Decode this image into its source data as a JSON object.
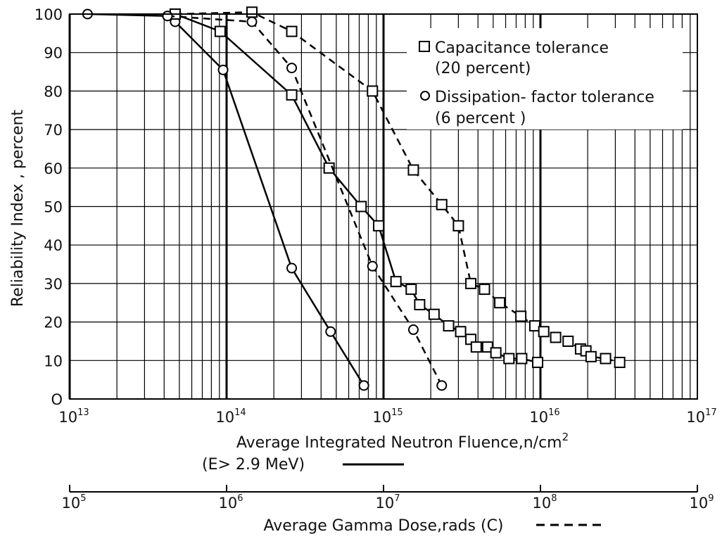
{
  "chart_data": {
    "type": "line",
    "ylabel": "Reliability Index , percent",
    "xlabel": "Average Integrated Neutron Fluence,n/cm²",
    "xlabel_note": "(E> 2.9 MeV)",
    "x_scale": "log",
    "xlim": [
      10000000000000.0,
      1e+17
    ],
    "ylim": [
      0,
      100
    ],
    "y_ticks": [
      "O",
      "10",
      "20",
      "30",
      "40",
      "50",
      "60",
      "70",
      "80",
      "90",
      "100"
    ],
    "x_ticks": [
      {
        "base": "10",
        "exp": "13"
      },
      {
        "base": "10",
        "exp": "14"
      },
      {
        "base": "10",
        "exp": "15"
      },
      {
        "base": "10",
        "exp": "16"
      },
      {
        "base": "10",
        "exp": "17"
      }
    ],
    "secondary_axis": {
      "label": "Average Gamma Dose,rads (C)",
      "scale": "log",
      "range": [
        100000.0,
        1000000000.0
      ],
      "ticks": [
        {
          "base": "10",
          "exp": "5"
        },
        {
          "base": "10",
          "exp": "6"
        },
        {
          "base": "10",
          "exp": "7"
        },
        {
          "base": "10",
          "exp": "8"
        },
        {
          "base": "10",
          "exp": "9"
        }
      ]
    },
    "grid": true,
    "legend_position": "top-right",
    "legend": [
      {
        "marker": "square",
        "line1": "Capacitance tolerance",
        "line2": "(20 percent)"
      },
      {
        "marker": "circle",
        "line1": "Dissipation- factor tolerance",
        "line2": "(6 percent )"
      }
    ],
    "series": [
      {
        "marker": "square",
        "style": "solid",
        "points": [
          [
            47000000000000.0,
            100
          ],
          [
            91000000000000.0,
            95.5
          ],
          [
            260000000000000.0,
            79
          ],
          [
            450000000000000.0,
            60
          ],
          [
            720000000000000.0,
            50
          ],
          [
            930000000000000.0,
            45
          ],
          [
            1200000000000000.0,
            30.5
          ],
          [
            1500000000000000.0,
            28.5
          ],
          [
            1700000000000000.0,
            24.5
          ],
          [
            2100000000000000.0,
            22
          ],
          [
            2600000000000000.0,
            19
          ],
          [
            3100000000000000.0,
            17.5
          ],
          [
            3600000000000000.0,
            15.5
          ],
          [
            3900000000000000.0,
            13.5
          ],
          [
            4600000000000000.0,
            13.5
          ],
          [
            5200000000000000.0,
            12
          ],
          [
            6300000000000000.0,
            10.5
          ],
          [
            7600000000000000.0,
            10.5
          ],
          [
            9600000000000000.0,
            9.5
          ]
        ]
      },
      {
        "marker": "circle",
        "style": "solid",
        "points": [
          [
            13000000000000.0,
            100
          ],
          [
            42000000000000.0,
            99.5
          ],
          [
            47000000000000.0,
            98
          ],
          [
            95000000000000.0,
            85.5
          ],
          [
            260000000000000.0,
            34
          ],
          [
            460000000000000.0,
            17.5
          ],
          [
            750000000000000.0,
            3.5
          ]
        ]
      },
      {
        "marker": "square",
        "style": "dashed",
        "points": [
          [
            47000000000000.0,
            100
          ],
          [
            145000000000000.0,
            100.5
          ],
          [
            260000000000000.0,
            95.5
          ],
          [
            850000000000000.0,
            80
          ],
          [
            1550000000000000.0,
            59.5
          ],
          [
            2350000000000000.0,
            50.5
          ],
          [
            3000000000000000.0,
            45
          ],
          [
            3600000000000000.0,
            30
          ],
          [
            4400000000000000.0,
            28.5
          ],
          [
            5500000000000000.0,
            25
          ],
          [
            7500000000000000.0,
            21.5
          ],
          [
            9200000000000000.0,
            19
          ],
          [
            1.05e+16,
            17.5
          ],
          [
            1.25e+16,
            16
          ],
          [
            1.5e+16,
            15
          ],
          [
            1.8e+16,
            13
          ],
          [
            1.95e+16,
            12.5
          ],
          [
            2.1e+16,
            11
          ],
          [
            2.6e+16,
            10.5
          ],
          [
            3.2e+16,
            9.5
          ]
        ]
      },
      {
        "marker": "circle",
        "style": "dashed",
        "points": [
          [
            42000000000000.0,
            99.5
          ],
          [
            145000000000000.0,
            98
          ],
          [
            260000000000000.0,
            86
          ],
          [
            850000000000000.0,
            34.5
          ],
          [
            1550000000000000.0,
            18
          ],
          [
            2350000000000000.0,
            3.5
          ]
        ]
      }
    ]
  }
}
